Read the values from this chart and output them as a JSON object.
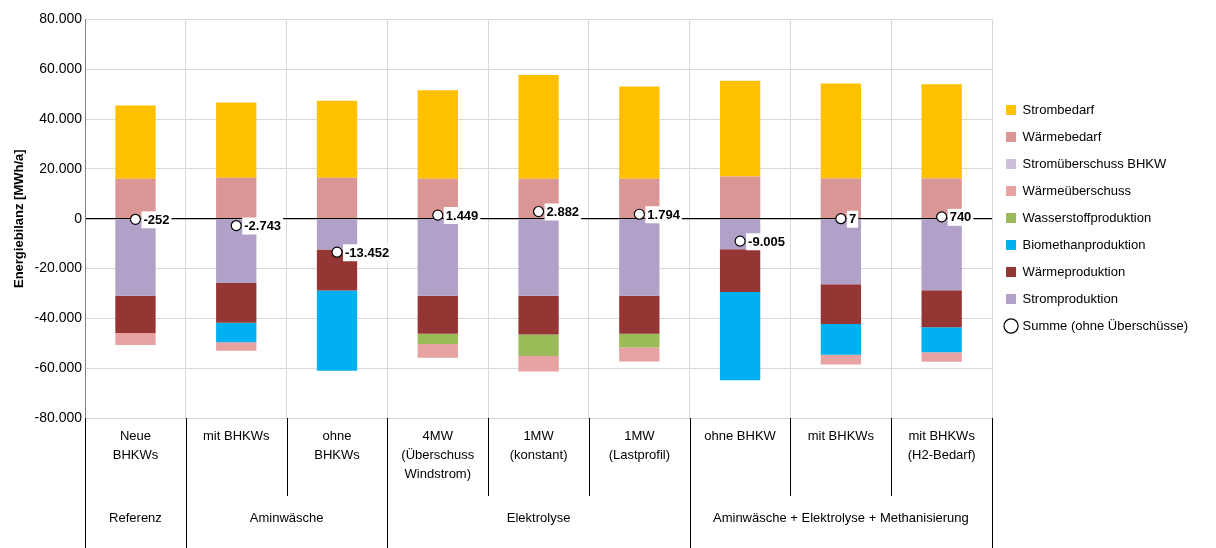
{
  "chart_data": {
    "type": "bar",
    "stacked": true,
    "ylabel": "Energiebilanz [MWh/a]",
    "categories": [
      "Neue BHKWs",
      "mit BHKWs",
      "ohne BHKWs",
      "4MW (Überschuss Windstrom)",
      "1MW (konstant)",
      "1MW (Lastprofil)",
      "ohne BHKW",
      "mit BHKWs",
      "mit BHKWs (H2-Bedarf)"
    ],
    "ylim": [
      -80000,
      80000
    ],
    "yticks": [
      {
        "value": -80000,
        "label": "-80.000"
      },
      {
        "value": -60000,
        "label": "-60.000"
      },
      {
        "value": -40000,
        "label": "-40.000"
      },
      {
        "value": -20000,
        "label": "-20.000"
      },
      0,
      {
        "value": 20000,
        "label": "20.000"
      },
      {
        "value": 40000,
        "label": "40.000"
      },
      {
        "value": 60000,
        "label": "60.000"
      },
      {
        "value": 80000,
        "label": "80.000"
      }
    ],
    "grid": true,
    "legend": "right",
    "annotations": [
      "Referenz",
      "Aminwäsche",
      "Elektrolyse",
      "Aminwäsche + Elektrolyse + Methanisierung"
    ],
    "series": [
      {
        "name": "Wärmebedarf",
        "color": "#da9694",
        "values": [
          16000,
          16400,
          16400,
          16000,
          16000,
          16000,
          16900,
          16100,
          16100
        ]
      },
      {
        "name": "Strombedarf",
        "color": "#ffc000",
        "values": [
          29400,
          30200,
          30900,
          35600,
          41700,
          37100,
          38500,
          38200,
          37900
        ]
      },
      {
        "name": "Stromproduktion",
        "color": "#b1a0c7",
        "values": [
          -30900,
          -25800,
          -12400,
          -30900,
          -30900,
          -30900,
          -12300,
          -26300,
          -28700
        ]
      },
      {
        "name": "Wärmeproduktion",
        "color": "#963634",
        "values": [
          -15000,
          -16000,
          -16400,
          -15300,
          -15600,
          -15300,
          -17100,
          -16000,
          -14900
        ]
      },
      {
        "name": "Biomethanproduktion",
        "color": "#00b0f0",
        "values": [
          null,
          -7800,
          -32200,
          null,
          null,
          null,
          -35400,
          -12300,
          -10000
        ]
      },
      {
        "name": "Wasserstoffproduktion",
        "color": "#9bbb59",
        "values": [
          null,
          null,
          null,
          -4100,
          -8600,
          -5500,
          null,
          null,
          null
        ]
      },
      {
        "name": "Wärmeüberschuss",
        "color": "#e6a3a1",
        "values": [
          -4800,
          -3400,
          null,
          -5500,
          -6200,
          -5600,
          null,
          -3900,
          -3800
        ]
      },
      {
        "name": "Stromüberschuss BHKW",
        "color": "#ccc0da",
        "values": [
          null,
          null,
          null,
          null,
          null,
          null,
          null,
          null,
          null
        ]
      },
      {
        "name": "Summe (ohne Überschüsse)",
        "type": "scatter",
        "marker": "circle",
        "color": "#ffffff",
        "values": [
          -252,
          -2743,
          -13452,
          1449,
          2882,
          1794,
          -9005,
          7,
          740
        ],
        "value_labels": [
          "-252",
          "-2.743",
          "-13.452",
          "1.449",
          "2.882",
          "1.794",
          "-9.005",
          "7",
          "740"
        ]
      }
    ]
  }
}
